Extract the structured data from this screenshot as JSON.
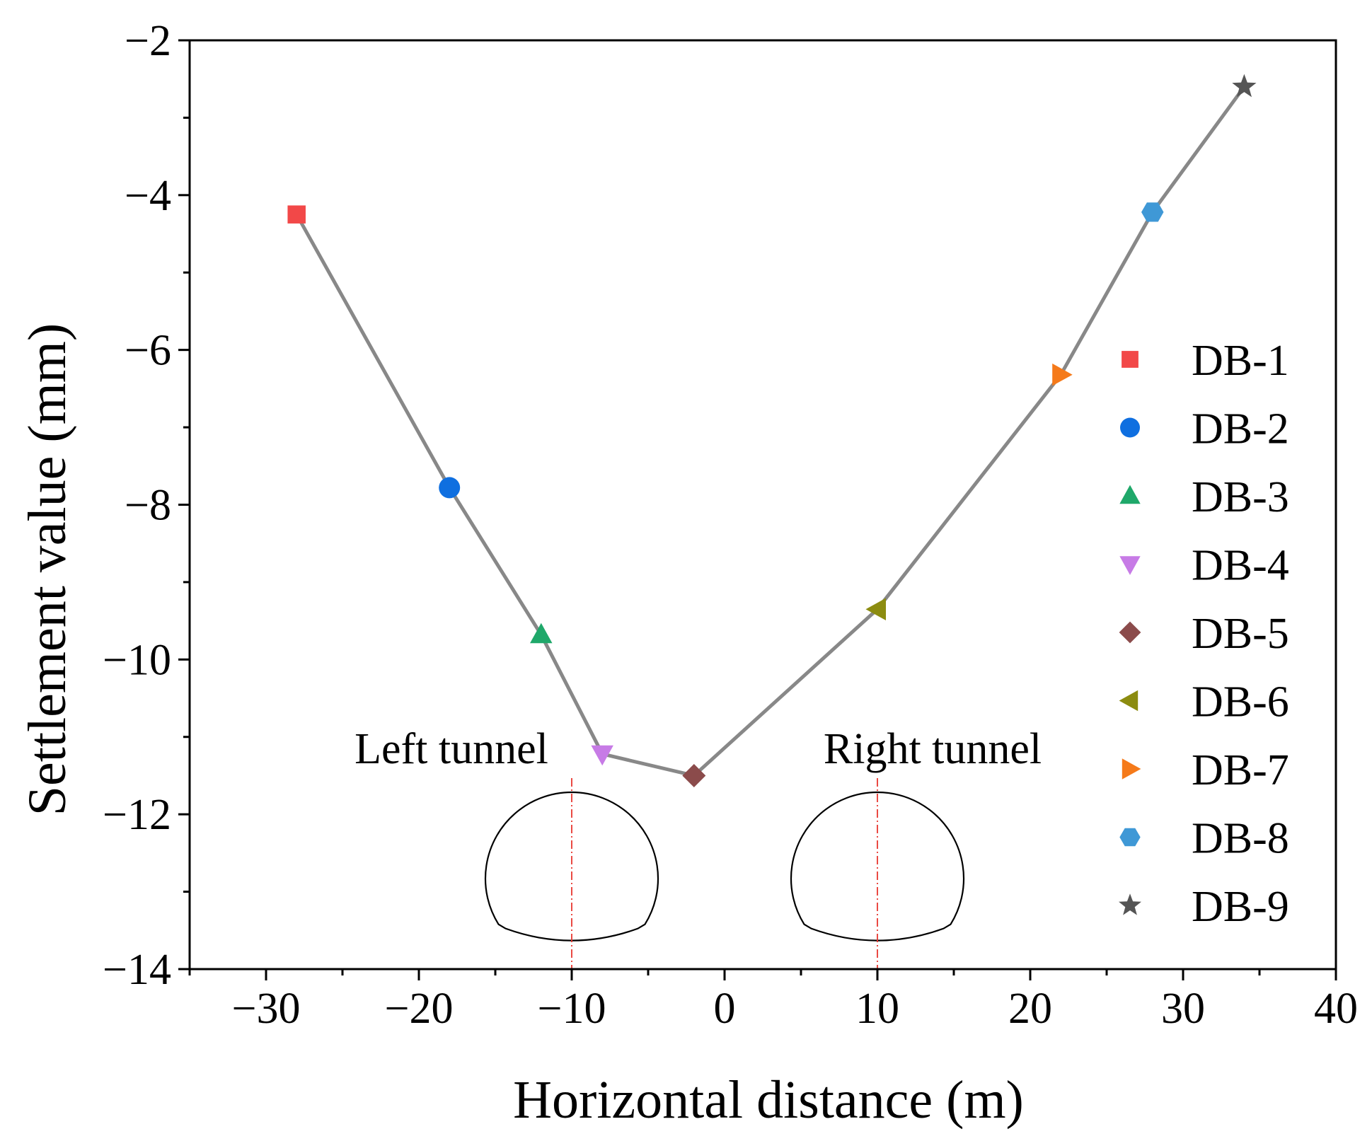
{
  "chart_data": {
    "type": "line",
    "xlabel": "Horizontal distance (m)",
    "ylabel": "Settlement value (mm)",
    "xlim": [
      -35,
      40
    ],
    "ylim": [
      -14,
      -2
    ],
    "xticks": [
      -30,
      -20,
      -10,
      0,
      10,
      20,
      30,
      40
    ],
    "xtick_labels": [
      "−30",
      "−20",
      "−10",
      "0",
      "10",
      "20",
      "30",
      "40"
    ],
    "yticks": [
      -14,
      -12,
      -10,
      -8,
      -6,
      -4,
      -2
    ],
    "ytick_labels": [
      "−14",
      "−12",
      "−10",
      "−8",
      "−6",
      "−4",
      "−2"
    ],
    "x_minor_step": 5,
    "y_minor_step": 1,
    "grid": false,
    "legend_position": "right",
    "line_color": "#888888",
    "points": [
      {
        "name": "DB-1",
        "x": -28,
        "y": -4.25,
        "marker": "square",
        "color": "#f24848"
      },
      {
        "name": "DB-2",
        "x": -18,
        "y": -7.78,
        "marker": "circle",
        "color": "#0f6fe0"
      },
      {
        "name": "DB-3",
        "x": -12,
        "y": -9.68,
        "marker": "triangle-up",
        "color": "#1fa86a"
      },
      {
        "name": "DB-4",
        "x": -8,
        "y": -11.22,
        "marker": "triangle-down",
        "color": "#c77be6"
      },
      {
        "name": "DB-5",
        "x": -2,
        "y": -11.5,
        "marker": "diamond",
        "color": "#8b4b4b"
      },
      {
        "name": "DB-6",
        "x": 10,
        "y": -9.35,
        "marker": "triangle-left",
        "color": "#8c8c10"
      },
      {
        "name": "DB-7",
        "x": 22,
        "y": -6.32,
        "marker": "triangle-right",
        "color": "#f57a1a"
      },
      {
        "name": "DB-8",
        "x": 28,
        "y": -4.22,
        "marker": "hexagon",
        "color": "#3f98d6"
      },
      {
        "name": "DB-9",
        "x": 34,
        "y": -2.6,
        "marker": "star",
        "color": "#555555"
      }
    ],
    "annotations": [
      {
        "text": "Left tunnel",
        "tunnel_center_x": -10
      },
      {
        "text": "Right tunnel",
        "tunnel_center_x": 10
      }
    ]
  }
}
